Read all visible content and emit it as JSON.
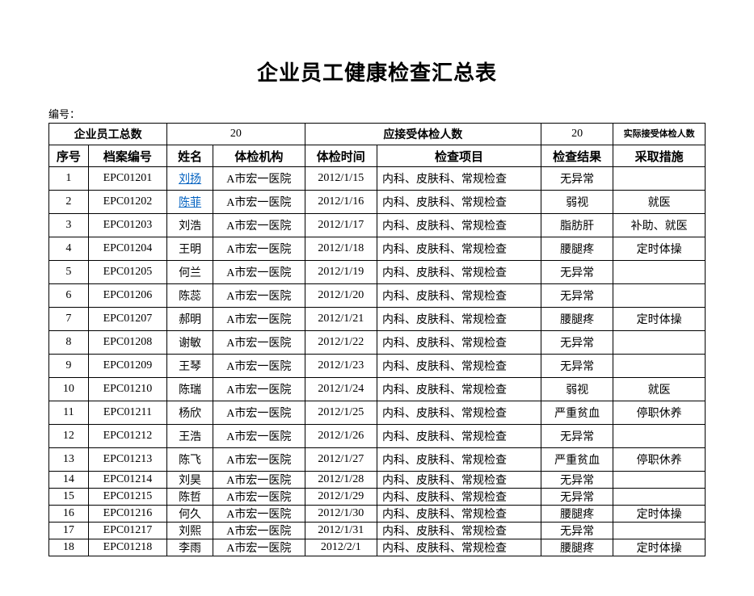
{
  "title": "企业员工健康检查汇总表",
  "doc_label": "编号：",
  "summary": {
    "total_label": "企业员工总数",
    "total_value": "20",
    "required_label": "应接受体检人数",
    "required_value": "20",
    "actual_label": "实际接受体检人数"
  },
  "columns": [
    "序号",
    "档案编号",
    "姓名",
    "体检机构",
    "体检时间",
    "检查项目",
    "检查结果",
    "采取措施"
  ],
  "rows": [
    {
      "h": "tall",
      "seq": "1",
      "file": "EPC01201",
      "name": "刘扬",
      "link": true,
      "org": "A市宏一医院",
      "time": "2012/1/15",
      "items": "内科、皮肤科、常规检查",
      "result": "无异常",
      "action": ""
    },
    {
      "h": "tall",
      "seq": "2",
      "file": "EPC01202",
      "name": "陈菲",
      "link": true,
      "org": "A市宏一医院",
      "time": "2012/1/16",
      "items": "内科、皮肤科、常规检查",
      "result": "弱视",
      "action": "就医"
    },
    {
      "h": "tall",
      "seq": "3",
      "file": "EPC01203",
      "name": "刘浩",
      "link": false,
      "org": "A市宏一医院",
      "time": "2012/1/17",
      "items": "内科、皮肤科、常规检查",
      "result": "脂肪肝",
      "action": "补助、就医"
    },
    {
      "h": "tall",
      "seq": "4",
      "file": "EPC01204",
      "name": "王明",
      "link": false,
      "org": "A市宏一医院",
      "time": "2012/1/18",
      "items": "内科、皮肤科、常规检查",
      "result": "腰腿疼",
      "action": "定时体操"
    },
    {
      "h": "tall",
      "seq": "5",
      "file": "EPC01205",
      "name": "何兰",
      "link": false,
      "org": "A市宏一医院",
      "time": "2012/1/19",
      "items": "内科、皮肤科、常规检查",
      "result": "无异常",
      "action": ""
    },
    {
      "h": "tall",
      "seq": "6",
      "file": "EPC01206",
      "name": "陈蕊",
      "link": false,
      "org": "A市宏一医院",
      "time": "2012/1/20",
      "items": "内科、皮肤科、常规检查",
      "result": "无异常",
      "action": ""
    },
    {
      "h": "tall",
      "seq": "7",
      "file": "EPC01207",
      "name": "郝明",
      "link": false,
      "org": "A市宏一医院",
      "time": "2012/1/21",
      "items": "内科、皮肤科、常规检查",
      "result": "腰腿疼",
      "action": "定时体操"
    },
    {
      "h": "tall",
      "seq": "8",
      "file": "EPC01208",
      "name": "谢敏",
      "link": false,
      "org": "A市宏一医院",
      "time": "2012/1/22",
      "items": "内科、皮肤科、常规检查",
      "result": "无异常",
      "action": ""
    },
    {
      "h": "tall",
      "seq": "9",
      "file": "EPC01209",
      "name": "王琴",
      "link": false,
      "org": "A市宏一医院",
      "time": "2012/1/23",
      "items": "内科、皮肤科、常规检查",
      "result": "无异常",
      "action": ""
    },
    {
      "h": "tall",
      "seq": "10",
      "file": "EPC01210",
      "name": "陈瑞",
      "link": false,
      "org": "A市宏一医院",
      "time": "2012/1/24",
      "items": "内科、皮肤科、常规检查",
      "result": "弱视",
      "action": "就医"
    },
    {
      "h": "tall",
      "seq": "11",
      "file": "EPC01211",
      "name": "杨欣",
      "link": false,
      "org": "A市宏一医院",
      "time": "2012/1/25",
      "items": "内科、皮肤科、常规检查",
      "result": "严重贫血",
      "action": "停职休养"
    },
    {
      "h": "tall",
      "seq": "12",
      "file": "EPC01212",
      "name": "王浩",
      "link": false,
      "org": "A市宏一医院",
      "time": "2012/1/26",
      "items": "内科、皮肤科、常规检查",
      "result": "无异常",
      "action": ""
    },
    {
      "h": "tall",
      "seq": "13",
      "file": "EPC01213",
      "name": "陈飞",
      "link": false,
      "org": "A市宏一医院",
      "time": "2012/1/27",
      "items": "内科、皮肤科、常规检查",
      "result": "严重贫血",
      "action": "停职休养"
    },
    {
      "h": "short",
      "seq": "14",
      "file": "EPC01214",
      "name": "刘昊",
      "link": false,
      "org": "A市宏一医院",
      "time": "2012/1/28",
      "items": "内科、皮肤科、常规检查",
      "result": "无异常",
      "action": ""
    },
    {
      "h": "short",
      "seq": "15",
      "file": "EPC01215",
      "name": "陈哲",
      "link": false,
      "org": "A市宏一医院",
      "time": "2012/1/29",
      "items": "内科、皮肤科、常规检查",
      "result": "无异常",
      "action": ""
    },
    {
      "h": "short",
      "seq": "16",
      "file": "EPC01216",
      "name": "何久",
      "link": false,
      "org": "A市宏一医院",
      "time": "2012/1/30",
      "items": "内科、皮肤科、常规检查",
      "result": "腰腿疼",
      "action": "定时体操"
    },
    {
      "h": "short",
      "seq": "17",
      "file": "EPC01217",
      "name": "刘熙",
      "link": false,
      "org": "A市宏一医院",
      "time": "2012/1/31",
      "items": "内科、皮肤科、常规检查",
      "result": "无异常",
      "action": ""
    },
    {
      "h": "short",
      "seq": "18",
      "file": "EPC01218",
      "name": "李雨",
      "link": false,
      "org": "A市宏一医院",
      "time": "2012/2/1",
      "items": "内科、皮肤科、常规检查",
      "result": "腰腿疼",
      "action": "定时体操"
    }
  ]
}
